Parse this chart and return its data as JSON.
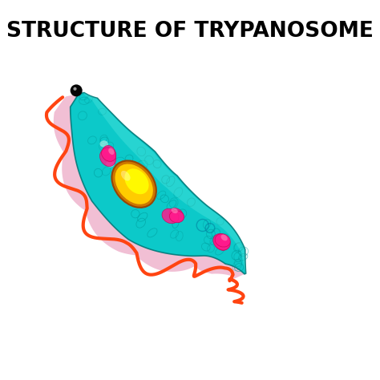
{
  "title": "STRUCTURE OF TRYPANOSOME",
  "title_fontsize": 19,
  "title_fontweight": "bold",
  "bg_color": "#ffffff",
  "body_color": "#00cccc",
  "body_dark_color": "#008888",
  "body_light_color": "#44ffee",
  "membrane_color": "#f0b8d0",
  "flagellum_color": "#ff4411",
  "nucleus_outer_color": "#dd9900",
  "nucleus_inner_color": "#ffff00",
  "nucleus_mid_color": "#ffcc00",
  "mitochondria_color": "#ff1a8c",
  "eye_color": "#050505"
}
